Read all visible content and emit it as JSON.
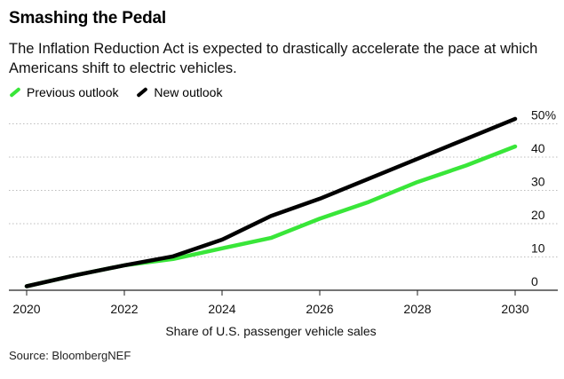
{
  "header": {
    "title": "Smashing the Pedal",
    "subtitle": "The Inflation Reduction Act is expected to drastically accelerate the pace at which Americans shift to electric vehicles."
  },
  "footer": {
    "source": "Source: BloombergNEF"
  },
  "chart_data": {
    "type": "line",
    "title": "Smashing the Pedal",
    "xlabel": "Share of U.S. passenger vehicle sales",
    "ylabel": "",
    "xlim": [
      2020,
      2030
    ],
    "ylim": [
      0,
      52
    ],
    "x_ticks": [
      "2020",
      "2022",
      "2024",
      "2026",
      "2028",
      "2030"
    ],
    "y_ticks": [
      "0",
      "10",
      "20",
      "30",
      "40",
      "50%"
    ],
    "grid": "horizontal dotted",
    "legend_position": "top-left",
    "x": [
      2020,
      2021,
      2022,
      2023,
      2024,
      2025,
      2026,
      2027,
      2028,
      2029,
      2030
    ],
    "series": [
      {
        "name": "Previous outlook",
        "color": "#39e639",
        "values": [
          1.2,
          4.5,
          7.5,
          9.4,
          12.6,
          15.7,
          21.5,
          26.5,
          32.5,
          37.5,
          43.2
        ]
      },
      {
        "name": "New outlook",
        "color": "#000000",
        "values": [
          1.2,
          4.5,
          7.5,
          10.2,
          15.2,
          22.3,
          27.5,
          33.5,
          39.5,
          45.5,
          51.5
        ]
      }
    ]
  }
}
